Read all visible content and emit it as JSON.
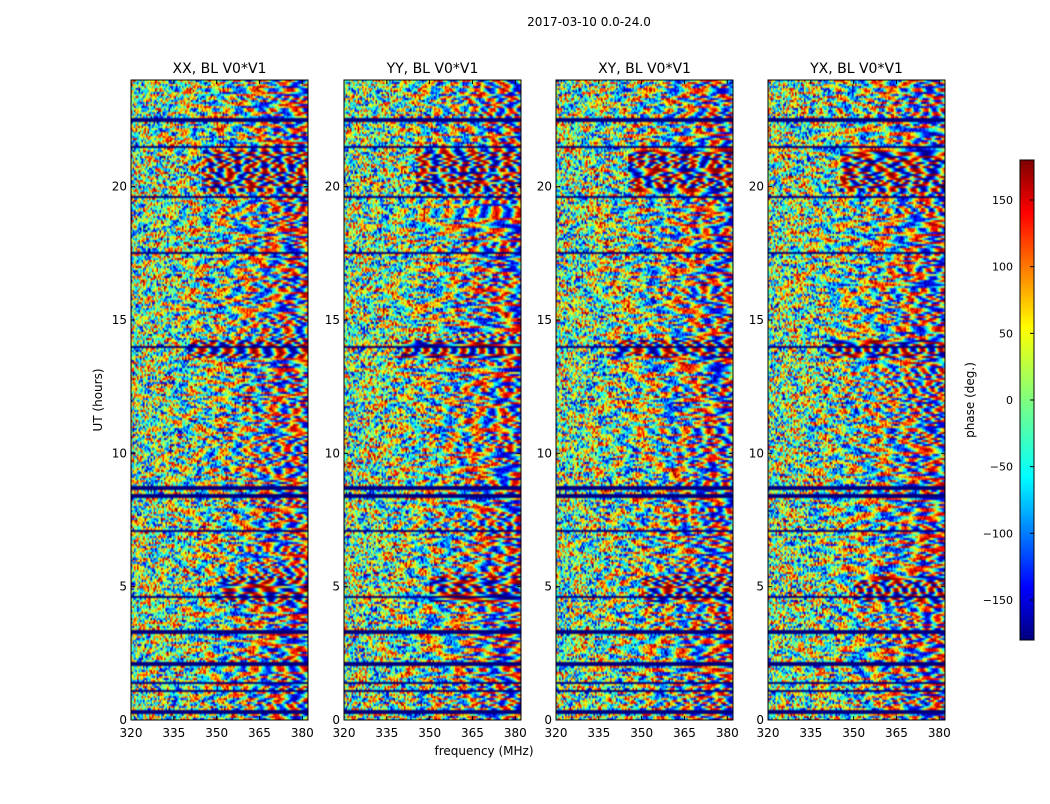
{
  "chart_data": {
    "type": "heatmap",
    "title": "2017-03-10 0.0-24.0",
    "xlabel": "frequency (MHz)",
    "ylabel": "UT (hours)",
    "xlim": [
      320,
      382
    ],
    "ylim": [
      0,
      24
    ],
    "x_ticks": [
      "320",
      "335",
      "350",
      "365",
      "380"
    ],
    "x_tick_values": [
      320,
      335,
      350,
      365,
      380
    ],
    "y_ticks": [
      "0",
      "5",
      "10",
      "15",
      "20"
    ],
    "y_tick_values": [
      0,
      5,
      10,
      15,
      20
    ],
    "panels": [
      {
        "title": "XX, BL V0*V1",
        "polarization": "XX"
      },
      {
        "title": "YY, BL V0*V1",
        "polarization": "YY"
      },
      {
        "title": "XY, BL V0*V1",
        "polarization": "XY"
      },
      {
        "title": "YX, BL V0*V1",
        "polarization": "YX"
      }
    ],
    "colorbar": {
      "label": "phase (deg.)",
      "range": [
        -180,
        180
      ],
      "ticks": [
        "150",
        "100",
        "50",
        "0",
        "−50",
        "−100",
        "−150"
      ],
      "tick_values": [
        150,
        100,
        50,
        0,
        -50,
        -100,
        -150
      ],
      "colormap": "jet"
    },
    "flagged_ut_bands": [
      0.3,
      1.1,
      1.4,
      2.1,
      3.3,
      4.6,
      7.1,
      8.4,
      8.7,
      14.0,
      17.5,
      19.6,
      21.5,
      22.5
    ],
    "smooth_ut_bands": [
      {
        "ut": 4.9,
        "hw": 0.5,
        "fringe_from_mhz": 350
      },
      {
        "ut": 13.9,
        "hw": 0.35,
        "fringe_from_mhz": 340
      },
      {
        "ut": 20.6,
        "hw": 0.8,
        "fringe_from_mhz": 345
      }
    ]
  }
}
